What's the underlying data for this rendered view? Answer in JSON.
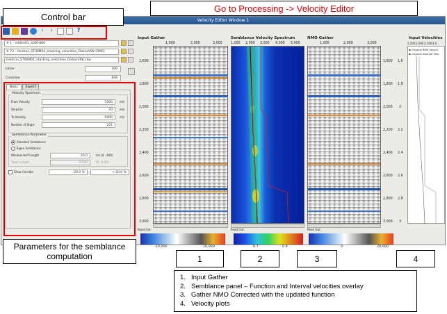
{
  "callouts": {
    "control_bar": "Control bar",
    "processing_path": "Go to Processing -> Velocity Editor",
    "params": "Parameters for the semblance computation",
    "num1": "1",
    "num2": "2",
    "num3": "3",
    "num4": "4",
    "legend_items": [
      "Input Gather",
      "Semblance panel – Function and Interval velocities overlay",
      "Gather NMO Corrected with the updated function",
      "Velocity plots"
    ],
    "legend_numbers": [
      "1.",
      "2.",
      "3.",
      "4."
    ]
  },
  "window": {
    "title": "Velocity Editor Window 1",
    "toolbar_icons": [
      "select-arrow-icon",
      "stack-icon",
      "save-icon",
      "gear-icon",
      "back-arrow-icon",
      "forward-arrow-icon",
      "grid-icon",
      "layout-icon",
      "help-icon"
    ]
  },
  "left": {
    "file1": "# 1 - st00m01_s200-800",
    "file2": "# 73 - Heidrun_ST00M01_stacking_velocities_DiskosV98 (RMS)",
    "file3": "Heidrun_ST00M01_stacking_velocities_DiskosV98_raw",
    "inline_label": "Inline",
    "inline_value": "200",
    "crossline_label": "Crossline",
    "crossline_value": "848",
    "tabs": [
      "Basic",
      "Expert"
    ],
    "velocity_spectrum": "Velocity Spectrum",
    "from_velocity_label": "From Velocity",
    "from_velocity_value": "1000",
    "stepsize_label": "Stepsize",
    "stepsize_value": "20",
    "to_velocity_label": "To Velocity",
    "to_velocity_value": "5000",
    "num_steps_label": "Number of Steps",
    "num_steps_value": "201",
    "unit_ms": "m/s",
    "semblance_parameter": "Semblance Parameter",
    "standard_semblance": "Standard Semblance",
    "eigen_semblance": "Eigen Semblance",
    "window_half_length_label": "Window Half Length",
    "window_half_length_value": "20.0",
    "window_half_length_range": "ms [0 ..400]",
    "taper_length_label": "Taper Length",
    "taper_length_value": "0.000",
    "taper_length_range": "[0 ..0.02]",
    "show_corridor_label": "Show Corridor",
    "corridor_minus": "- 20.0 %",
    "corridor_plus": "+ 20.0 %"
  },
  "panels": {
    "input_gather": "Input Gather",
    "semblance": "Semblance Velocity Spectrum",
    "nmo_gather": "NMO Gather",
    "input_velocities": "Input Velocities",
    "read_out": "Read Out:",
    "gather_x_ticks": [
      "1,000",
      "2,000",
      "3,000"
    ],
    "semb_x_ticks": [
      "1,000",
      "2,000",
      "3,000",
      "4,000",
      "5,000"
    ],
    "vel_x_ticks": [
      "2,500",
      "3,000",
      "3,500",
      "4,0"
    ],
    "time_ticks": [
      "1,600",
      "1,800",
      "2,000",
      "2,200",
      "2,400",
      "2,600",
      "2,800",
      "3,000"
    ],
    "vel_time_ticks": [
      "1.6",
      "1.8",
      "2",
      "2.2",
      "2.4",
      "2.6",
      "2.8",
      "3"
    ],
    "legend_rms": "Original RMS Velocit",
    "legend_interval": "Original Interval Velo",
    "cbar1_ticks": [
      "-10,000",
      "10,000"
    ],
    "cbar2_ticks": [
      "0.7",
      "0.9"
    ],
    "cbar3_ticks": [
      "0",
      "20,000"
    ]
  },
  "colors": {
    "callout_red": "#e00000",
    "rms_line": "#cc2222",
    "picked_line": "#202020"
  }
}
